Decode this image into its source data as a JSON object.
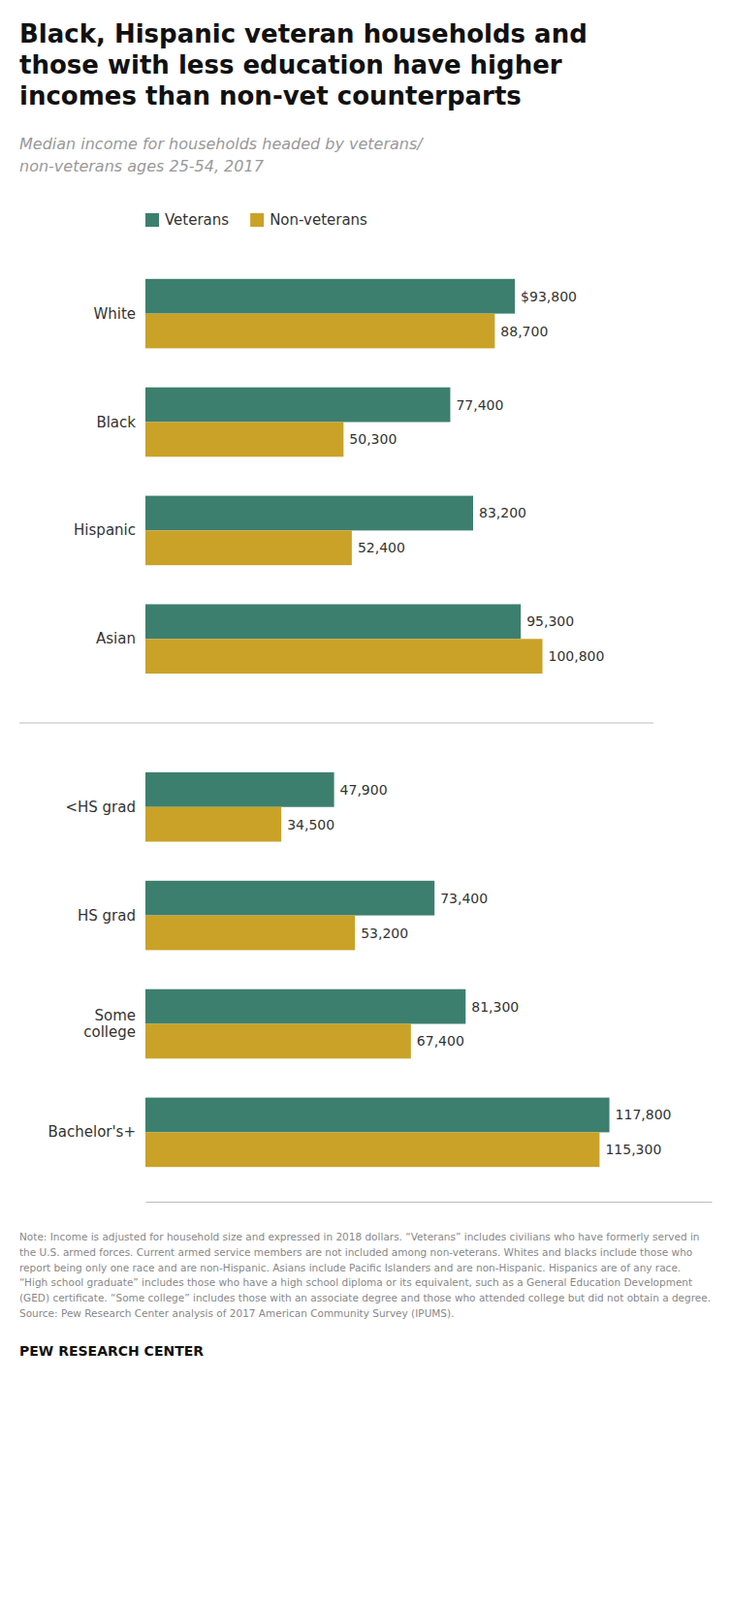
{
  "chart_data": {
    "type": "bar",
    "orientation": "horizontal",
    "title": "Black, Hispanic veteran households and\nthose with less education have higher\nincomes than non-vet counterparts",
    "subtitle": "Median income for households headed by veterans/\nnon-veterans ages 25-54, 2017",
    "categories": [
      "White",
      "Black",
      "Hispanic",
      "Asian",
      "<HS grad",
      "HS grad",
      "Some\ncollege",
      "Bachelor's+"
    ],
    "series": [
      {
        "name": "Veterans",
        "color": "#3d7f6e",
        "values": [
          93800,
          77400,
          83200,
          95300,
          47900,
          73400,
          81300,
          117800
        ],
        "value_labels": [
          "$93,800",
          "77,400",
          "83,200",
          "95,300",
          "47,900",
          "73,400",
          "81,300",
          "117,800"
        ]
      },
      {
        "name": "Non-veterans",
        "color": "#c9a227",
        "values": [
          88700,
          50300,
          52400,
          100800,
          34500,
          53200,
          67400,
          115300
        ],
        "value_labels": [
          "88,700",
          "50,300",
          "52,400",
          "100,800",
          "34,500",
          "53,200",
          "67,400",
          "115,300"
        ]
      }
    ],
    "xlim": [
      0,
      143750
    ],
    "xticks": [],
    "tick_labels": false,
    "grid": false,
    "data_labels": true,
    "legend": "upper left",
    "annotations": [
      "Note: Income is adjusted for household size and expressed in 2018 dollars. “Veterans” includes civilians who have formerly served in\nthe U.S. armed forces. Current armed service members are not included among non-veterans. Whites and blacks include those who\nreport being only one race and are non-Hispanic. Asians include Pacific Islanders and are non-Hispanic. Hispanics are of any race.\n“High school graduate” includes those who have a high school diploma or its equivalent, such as a General Education Development\n(GED) certificate. “Some college” includes those with an associate degree and those who attended college but did not obtain a degree.\nSource: Pew Research Center analysis of 2017 American Community Survey (IPUMS).",
      "PEW RESEARCH CENTER"
    ]
  }
}
